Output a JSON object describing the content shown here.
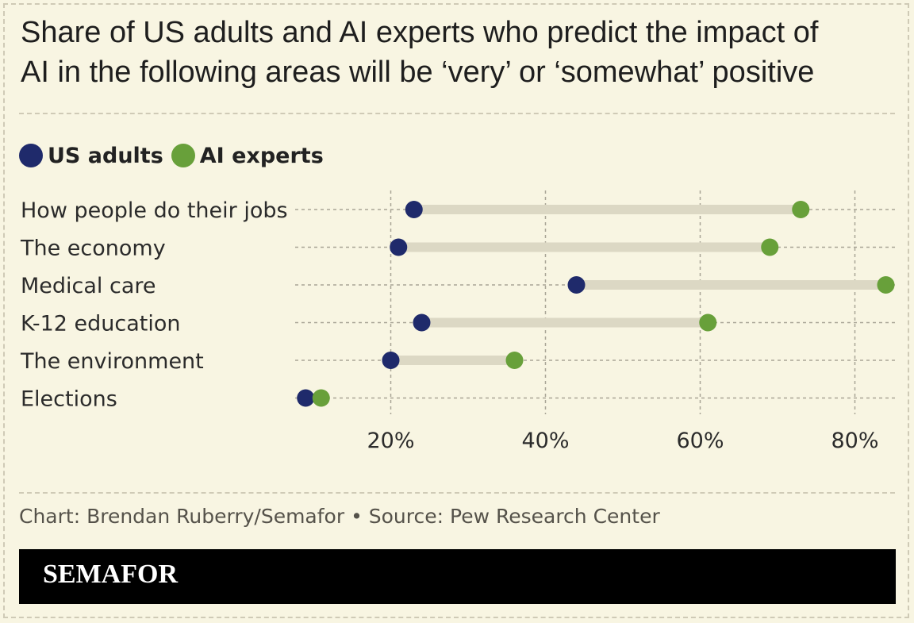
{
  "header": {
    "title_line1": "Share of US adults and AI experts who predict the impact of",
    "title_line2": "AI in the following areas will be ‘very’ or ‘somewhat’ positive"
  },
  "legend": [
    {
      "label": "US adults",
      "color": "#1f2a6b"
    },
    {
      "label": "AI experts",
      "color": "#68a03a"
    }
  ],
  "chart_data": {
    "type": "dumbbell",
    "title": "Share of US adults and AI experts who predict the impact of AI in the following areas will be ‘very’ or ‘somewhat’ positive",
    "categories": [
      "How people do their jobs",
      "The economy",
      "Medical care",
      "K-12 education",
      "The environment",
      "Elections"
    ],
    "series": [
      {
        "name": "US adults",
        "color": "#1f2a6b",
        "values": [
          23,
          21,
          44,
          24,
          20,
          9
        ]
      },
      {
        "name": "AI experts",
        "color": "#68a03a",
        "values": [
          73,
          69,
          84,
          61,
          36,
          11
        ]
      }
    ],
    "x_ticks": [
      20,
      40,
      60,
      80
    ],
    "x_tick_labels": [
      "20%",
      "40%",
      "60%",
      "80%"
    ],
    "xlim": [
      9,
      84
    ],
    "grid": true
  },
  "footer": {
    "credit": "Chart: Brendan Ruberry/Semafor • Source: Pew Research Center"
  },
  "brand": {
    "name": "SEMAFOR"
  }
}
